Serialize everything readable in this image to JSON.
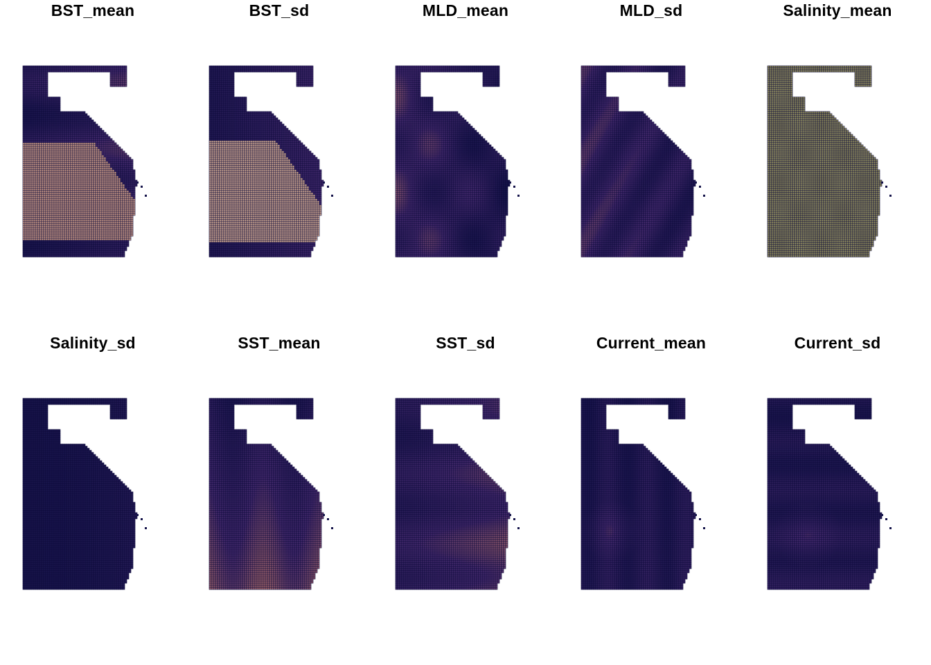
{
  "figure": {
    "panels": [
      {
        "id": "bst-mean",
        "title": "BST_mean",
        "palette": "base",
        "pattern": "bst-mean"
      },
      {
        "id": "bst-sd",
        "title": "BST_sd",
        "palette": "base",
        "pattern": "bst-sd"
      },
      {
        "id": "mld-mean",
        "title": "MLD_mean",
        "palette": "base",
        "pattern": "mld-mean"
      },
      {
        "id": "mld-sd",
        "title": "MLD_sd",
        "palette": "base",
        "pattern": "mld-sd"
      },
      {
        "id": "salinity-mean",
        "title": "Salinity_mean",
        "palette": "olive",
        "pattern": "salinity-mean"
      },
      {
        "id": "salinity-sd",
        "title": "Salinity_sd",
        "palette": "base",
        "pattern": "salinity-sd"
      },
      {
        "id": "sst-mean",
        "title": "SST_mean",
        "palette": "base",
        "pattern": "sst-mean"
      },
      {
        "id": "sst-sd",
        "title": "SST_sd",
        "palette": "base",
        "pattern": "sst-sd"
      },
      {
        "id": "current-mean",
        "title": "Current_mean",
        "palette": "base",
        "pattern": "current-mean"
      },
      {
        "id": "current-sd",
        "title": "Current_sd",
        "palette": "base",
        "pattern": "current-sd"
      }
    ],
    "colors": {
      "background": "#ffffff",
      "grid_lines": "#0d0a3a",
      "low": "#141349",
      "mid": "#4b2d73",
      "high": "#c47a6c",
      "peak": "#f6f0c8",
      "olive": "#a9a56a"
    }
  }
}
